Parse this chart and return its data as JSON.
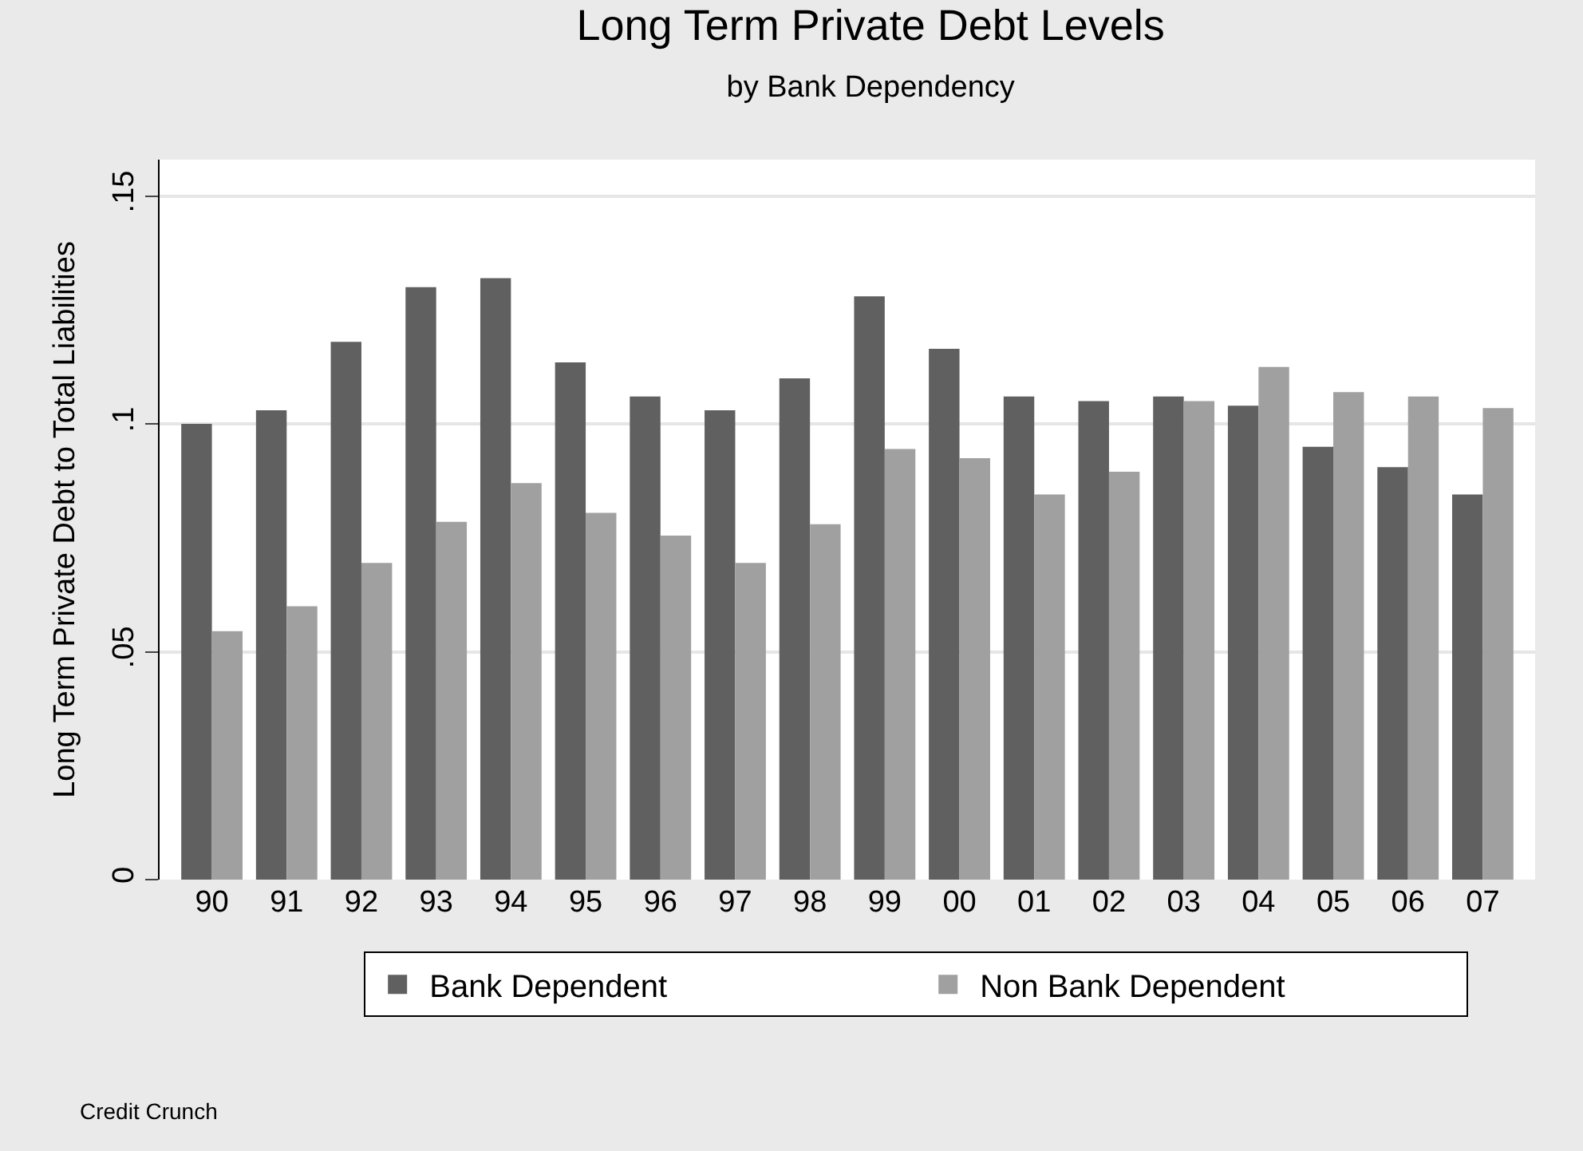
{
  "chart_data": {
    "type": "bar",
    "title": "Long Term Private Debt Levels",
    "subtitle": "by Bank Dependency",
    "ylabel": "Long Term Private Debt to Total Liabilities",
    "categories": [
      "90",
      "91",
      "92",
      "93",
      "94",
      "95",
      "96",
      "97",
      "98",
      "99",
      "00",
      "01",
      "02",
      "03",
      "04",
      "05",
      "06",
      "07"
    ],
    "series": [
      {
        "name": "Bank Dependent",
        "color": "#606060",
        "values": [
          0.1,
          0.103,
          0.118,
          0.13,
          0.132,
          0.1135,
          0.106,
          0.103,
          0.11,
          0.128,
          0.1165,
          0.106,
          0.105,
          0.106,
          0.104,
          0.095,
          0.0905,
          0.0845
        ]
      },
      {
        "name": "Non Bank Dependent",
        "color": "#a0a0a0",
        "values": [
          0.0545,
          0.06,
          0.0695,
          0.0785,
          0.087,
          0.0805,
          0.0755,
          0.0695,
          0.078,
          0.0945,
          0.0925,
          0.0845,
          0.0895,
          0.105,
          0.1125,
          0.107,
          0.106,
          0.1035
        ]
      }
    ],
    "ylim": [
      0,
      0.158
    ],
    "yticks": [
      0,
      {
        "value": 0.05,
        "label": ".05"
      },
      {
        "value": 0.1,
        "label": ".1"
      },
      {
        "value": 0.15,
        "label": ".15"
      }
    ],
    "grid": "y",
    "legend": "bottom",
    "annotations": [
      "Credit Crunch"
    ]
  }
}
